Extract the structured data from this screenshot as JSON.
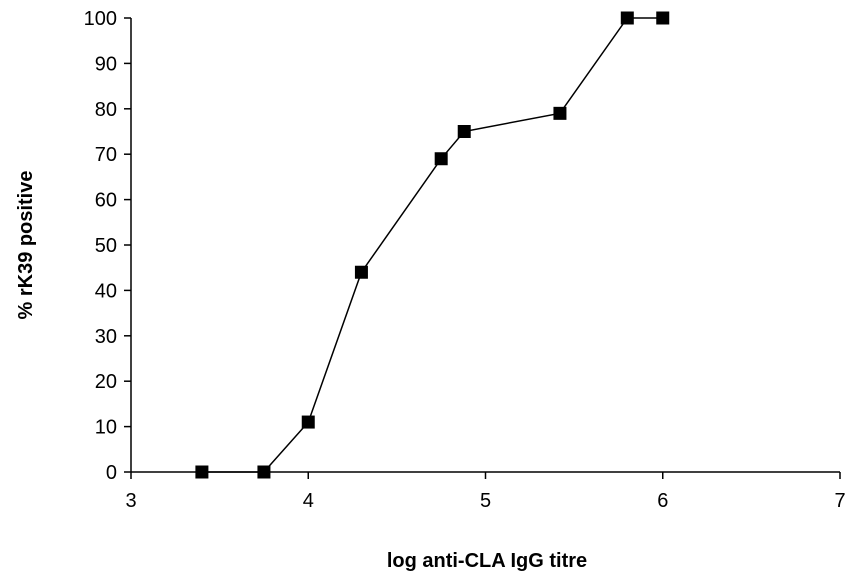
{
  "chart_data": {
    "type": "line",
    "title": "",
    "xlabel": "log anti-CLA IgG titre",
    "ylabel": "% rK39 positive",
    "xlim": [
      3,
      7
    ],
    "ylim": [
      0,
      100
    ],
    "xticks": [
      3,
      4,
      5,
      6,
      7
    ],
    "yticks": [
      0,
      10,
      20,
      30,
      40,
      50,
      60,
      70,
      80,
      90,
      100
    ],
    "grid": false,
    "legend": "none",
    "series": [
      {
        "marker": "square",
        "color": "#000000",
        "x": [
          3.4,
          3.75,
          4.0,
          4.3,
          4.75,
          4.88,
          5.42,
          5.8,
          6.0
        ],
        "y": [
          0,
          0,
          11,
          44,
          69,
          75,
          79,
          100,
          100
        ]
      }
    ]
  }
}
